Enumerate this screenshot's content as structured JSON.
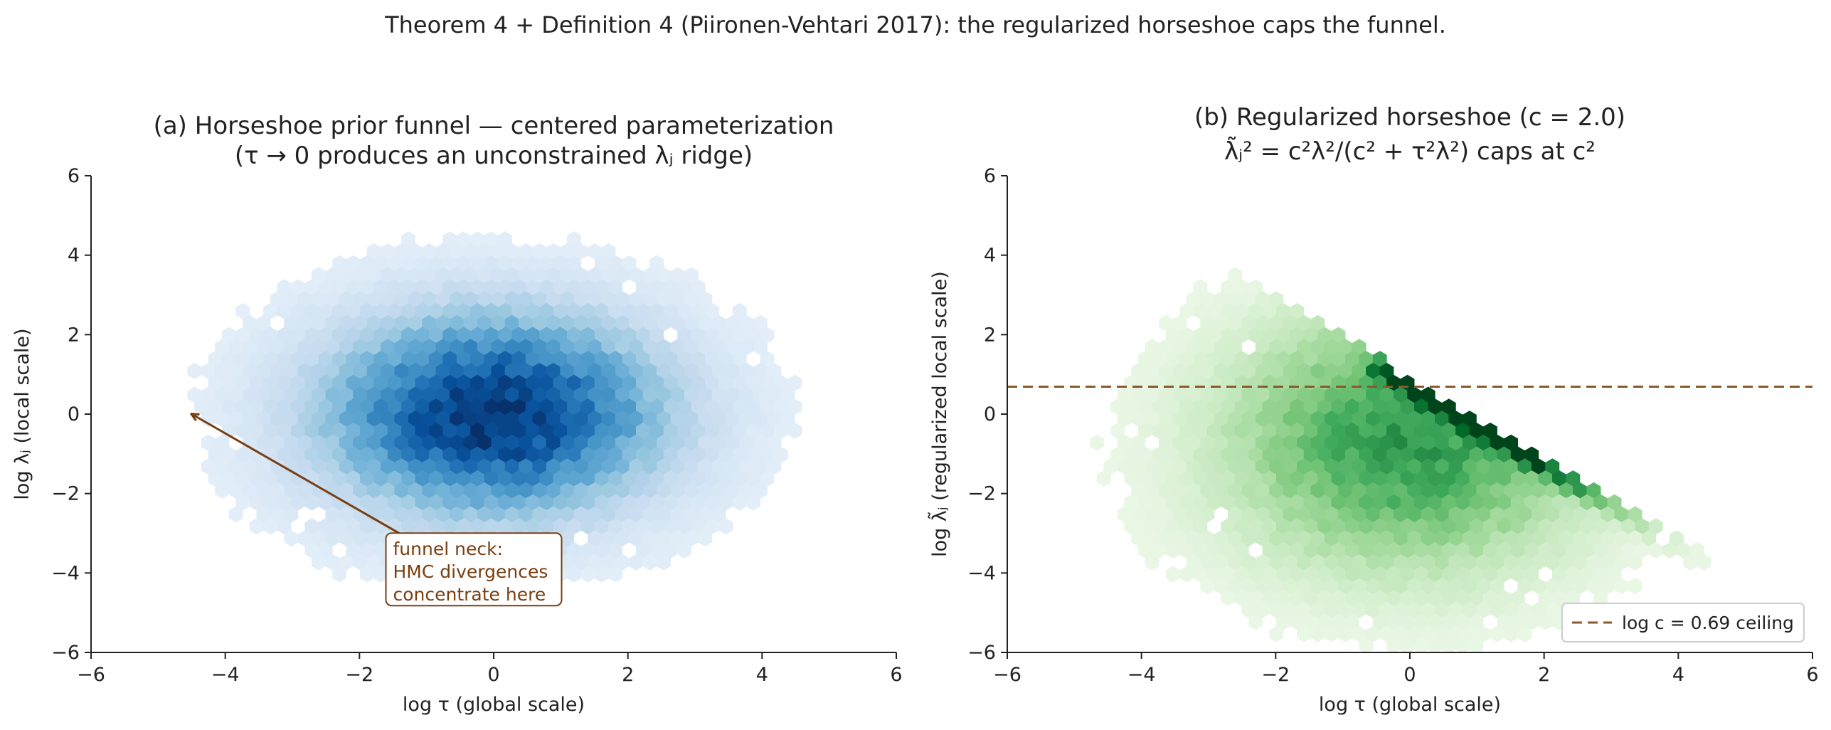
{
  "suptitle": "Theorem 4 + Definition 4 (Piironen-Vehtari 2017): the regularized horseshoe caps the funnel.",
  "chart_data": [
    {
      "type": "heatmap",
      "subtype": "hexbin",
      "colormap": "Blues",
      "title_line1": "(a) Horseshoe prior funnel — centered parameterization",
      "title_line2": "(τ → 0 produces an unconstrained λⱼ ridge)",
      "xlabel": "log τ  (global scale)",
      "ylabel": "log λⱼ  (local scale)",
      "xlim": [
        -6,
        6
      ],
      "ylim": [
        -6,
        6
      ],
      "xticks": [
        "−6",
        "−4",
        "−2",
        "0",
        "2",
        "4",
        "6"
      ],
      "yticks": [
        "−6",
        "−4",
        "−2",
        "0",
        "2",
        "4",
        "6"
      ],
      "density_center": [
        0,
        0
      ],
      "density_spread": [
        1.5,
        1.5
      ],
      "annotation": {
        "lines": [
          "funnel neck:",
          "HMC divergences",
          "concentrate here"
        ],
        "arrow_from": [
          -1.2,
          -3.2
        ],
        "arrow_to": [
          -4.5,
          0
        ],
        "text_anchor": [
          -1.5,
          -3.55
        ],
        "color": "#7a3e10"
      }
    },
    {
      "type": "heatmap",
      "subtype": "hexbin",
      "colormap": "Greens",
      "title_line1": "(b) Regularized horseshoe (c = 2.0)",
      "title_line2": "λ̃ⱼ² = c²λ²/(c² + τ²λ²) caps at c²",
      "xlabel": "log τ  (global scale)",
      "ylabel": "log λ̃ⱼ  (regularized local scale)",
      "xlim": [
        -6,
        6
      ],
      "ylim": [
        -6,
        6
      ],
      "xticks": [
        "−6",
        "−4",
        "−2",
        "0",
        "2",
        "4",
        "6"
      ],
      "yticks": [
        "−6",
        "−4",
        "−2",
        "0",
        "2",
        "4",
        "6"
      ],
      "c": 2.0,
      "ceiling": 0.69,
      "legend": {
        "label": "log c = 0.69 ceiling",
        "position": "lower-right"
      },
      "colors": {
        "ceiling_line": "#8b5a2b"
      }
    }
  ]
}
